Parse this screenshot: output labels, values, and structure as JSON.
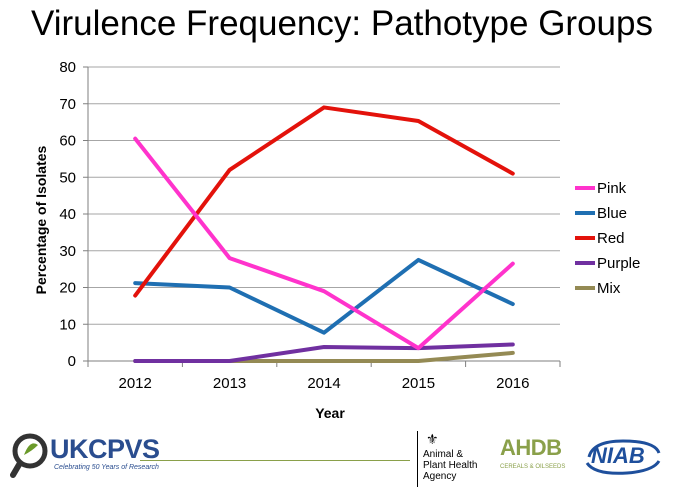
{
  "slide": {
    "title": "Virulence Frequency: Pathotype Groups"
  },
  "chart_data": {
    "type": "line",
    "title": "",
    "xlabel": "Year",
    "ylabel": "Percentage of Isolates",
    "categories": [
      "2012",
      "2013",
      "2014",
      "2015",
      "2016"
    ],
    "ylim": [
      0,
      80
    ],
    "yticks": [
      0,
      10,
      20,
      30,
      40,
      50,
      60,
      70,
      80
    ],
    "grid": true,
    "legend": "right",
    "series": [
      {
        "name": "Pink",
        "color": "#ff33cc",
        "values": [
          60.5,
          28,
          19,
          3.5,
          26.5
        ]
      },
      {
        "name": "Blue",
        "color": "#1f6fb2",
        "values": [
          21.2,
          20,
          7.7,
          27.5,
          15.5
        ]
      },
      {
        "name": "Red",
        "color": "#e3120b",
        "values": [
          17.8,
          52,
          69,
          65.3,
          51
        ]
      },
      {
        "name": "Purple",
        "color": "#7030a0",
        "values": [
          0,
          0,
          3.8,
          3.5,
          4.5
        ]
      },
      {
        "name": "Mix",
        "color": "#948a54",
        "values": [
          0,
          0,
          0,
          0,
          2.2
        ]
      }
    ]
  },
  "footer": {
    "ukcpvs": {
      "name": "UKCPVS",
      "tagline": "Celebrating 50 Years of Research",
      "icon": "magnifier-leaf-icon"
    },
    "apha": {
      "text": "Animal &\nPlant Health\nAgency",
      "icon": "royal-crest-icon"
    },
    "ahdb": {
      "name": "AHDB",
      "tagline": "CEREALS & OILSEEDS"
    },
    "niab": {
      "name": "NIAB"
    }
  }
}
